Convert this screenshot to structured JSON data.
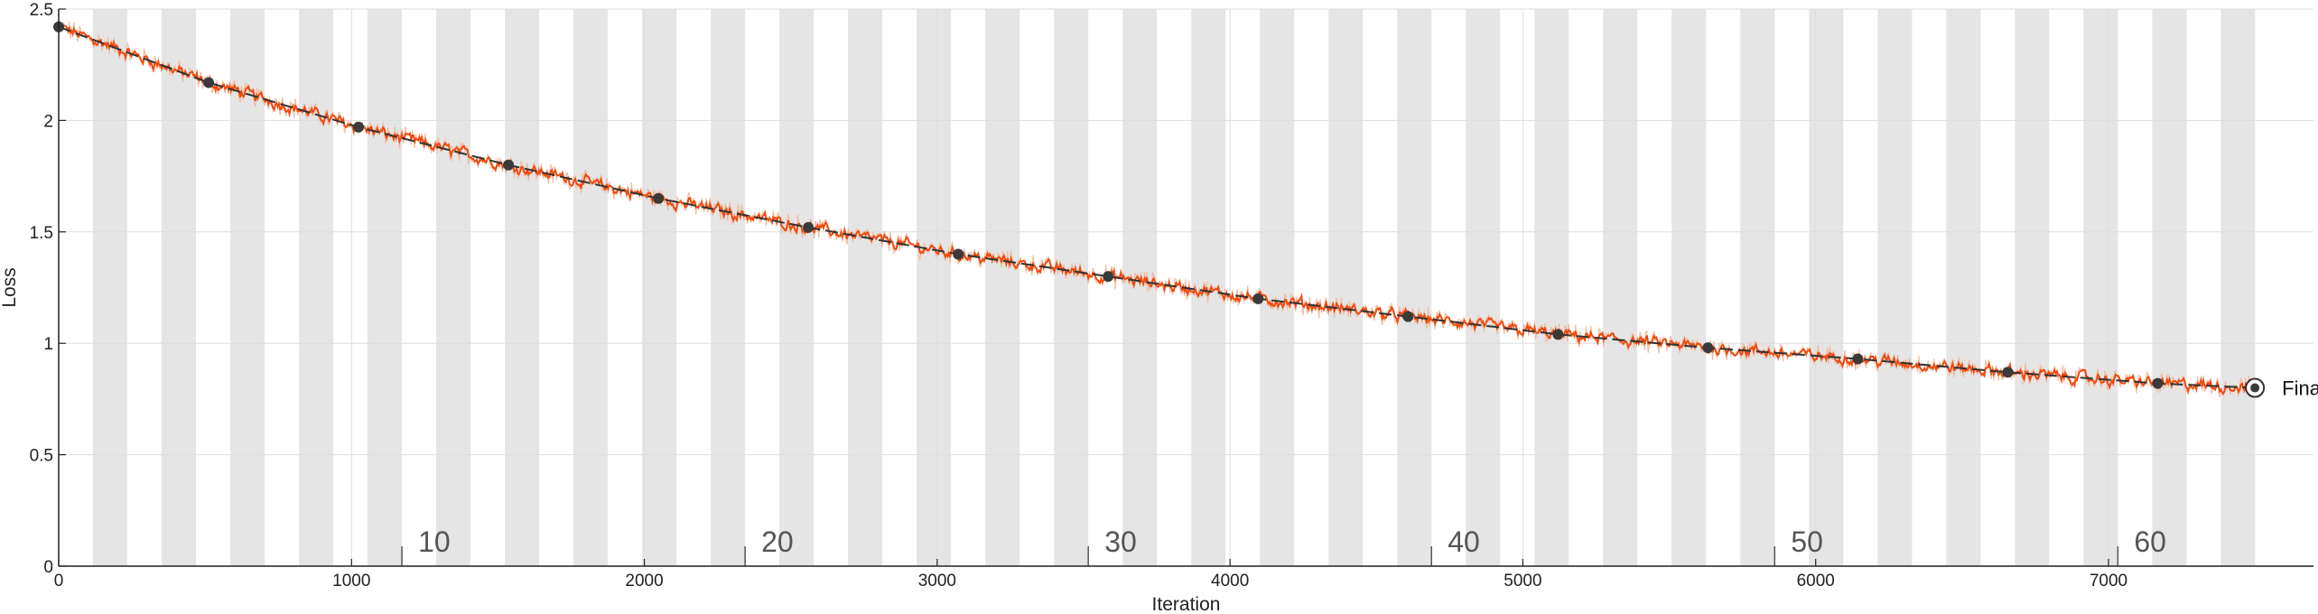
{
  "chart_data": {
    "type": "line",
    "xlabel": "Iteration",
    "ylabel": "Loss",
    "xlim": [
      0,
      7700
    ],
    "ylim": [
      0,
      2.5
    ],
    "x_ticks": [
      0,
      1000,
      2000,
      3000,
      4000,
      5000,
      6000,
      7000
    ],
    "y_ticks": [
      0,
      0.5,
      1,
      1.5,
      2,
      2.5
    ],
    "x_tick_labels": [
      "0",
      "1000",
      "2000",
      "3000",
      "4000",
      "5000",
      "6000",
      "7000"
    ],
    "y_tick_labels": [
      "0",
      "0.5",
      "1",
      "1.5",
      "2",
      "2.5"
    ],
    "grid": true,
    "epoch_length": 117.2,
    "epoch_bands_count": 64,
    "epoch_labels": [
      {
        "text": "10",
        "epoch": 10
      },
      {
        "text": "20",
        "epoch": 20
      },
      {
        "text": "30",
        "epoch": 30
      },
      {
        "text": "40",
        "epoch": 40
      },
      {
        "text": "50",
        "epoch": 50
      },
      {
        "text": "60",
        "epoch": 60
      }
    ],
    "markers": {
      "x": [
        0,
        512,
        1024,
        1536,
        2048,
        2560,
        3072,
        3584,
        4096,
        4608,
        5120,
        5632,
        6144,
        6656,
        7168
      ],
      "y": [
        2.42,
        2.17,
        1.97,
        1.8,
        1.65,
        1.52,
        1.4,
        1.3,
        1.2,
        1.12,
        1.04,
        0.98,
        0.93,
        0.87,
        0.82
      ]
    },
    "final_point": {
      "x": 7500,
      "y": 0.8
    },
    "final_label": "Final",
    "colors": {
      "raw": "#f2b79a",
      "smoothed": "#f04a0e",
      "trend": "#333333",
      "marker": "#3a3a3a",
      "band": "#e5e5e5",
      "grid": "#dddddd"
    }
  }
}
